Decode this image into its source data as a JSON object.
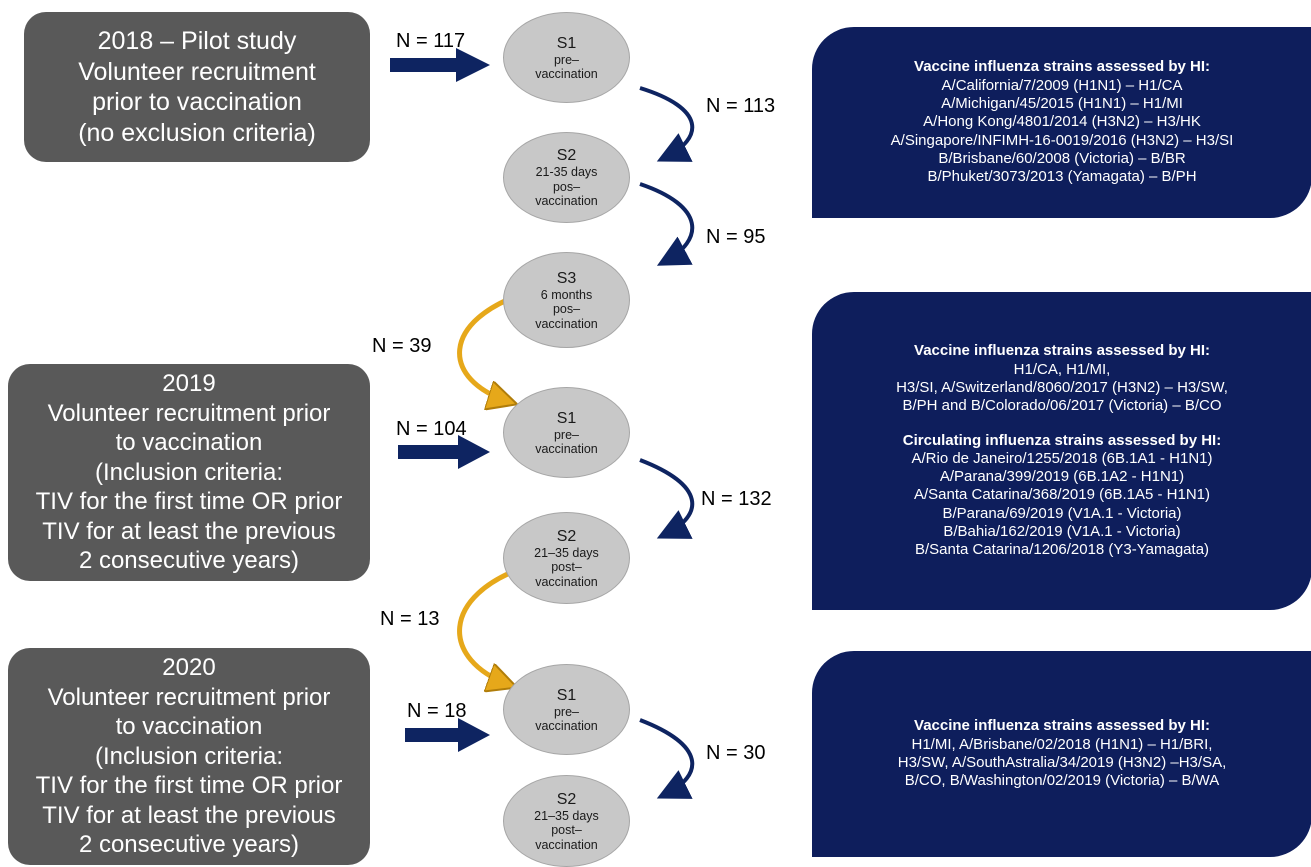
{
  "cohorts": {
    "c2018": {
      "lines": [
        "2018 – Pilot study",
        "Volunteer recruitment",
        "prior to vaccination",
        "(no exclusion criteria)"
      ]
    },
    "c2019": {
      "lines": [
        "2019",
        "Volunteer recruitment  prior",
        "to vaccination",
        "(Inclusion criteria:",
        "TIV for the first time OR prior",
        "TIV for at least the previous",
        "2 consecutive years)"
      ]
    },
    "c2020": {
      "lines": [
        "2020",
        "Volunteer recruitment  prior",
        "to vaccination",
        "(Inclusion criteria:",
        "TIV for the first time OR prior",
        "TIV for at least the previous",
        "2 consecutive years)"
      ]
    }
  },
  "samples": {
    "y2018_s1": {
      "id": "S1",
      "lines": [
        "pre–",
        "vaccination"
      ]
    },
    "y2018_s2": {
      "id": "S2",
      "lines": [
        "21-35 days",
        "pos–",
        "vaccination"
      ]
    },
    "y2018_s3": {
      "id": "S3",
      "lines": [
        "6 months",
        "pos–",
        "vaccination"
      ]
    },
    "y2019_s1": {
      "id": "S1",
      "lines": [
        "pre–",
        "vaccination"
      ]
    },
    "y2019_s2": {
      "id": "S2",
      "lines": [
        "21–35 days",
        "post–",
        "vaccination"
      ]
    },
    "y2020_s1": {
      "id": "S1",
      "lines": [
        "pre–",
        "vaccination"
      ]
    },
    "y2020_s2": {
      "id": "S2",
      "lines": [
        "21–35 days",
        "post–",
        "vaccination"
      ]
    }
  },
  "counts": {
    "recruit_2018": "N = 117",
    "s1_s2_2018": "N = 113",
    "s2_s3_2018": "N = 95",
    "carry_2018_2019": "N = 39",
    "recruit_2019": "N = 104",
    "s1_s2_2019": "N = 132",
    "carry_2019_2020": "N = 13",
    "recruit_2020": "N = 18",
    "s1_s2_2020": "N = 30"
  },
  "panels": {
    "p2018": {
      "heading": "Vaccine influenza strains assessed by HI:",
      "lines": [
        "A/California/7/2009 (H1N1) – H1/CA",
        "A/Michigan/45/2015 (H1N1) – H1/MI",
        "A/Hong Kong/4801/2014 (H3N2) – H3/HK",
        "A/Singapore/INFIMH-16-0019/2016  (H3N2) – H3/SI",
        "B/Brisbane/60/2008 (Victoria) – B/BR",
        "B/Phuket/3073/2013 (Yamagata)  – B/PH"
      ]
    },
    "p2019": {
      "heading": "Vaccine influenza strains assessed by HI:",
      "lines": [
        "H1/CA, H1/MI,",
        "H3/SI, A/Switzerland/8060/2017 (H3N2) – H3/SW,",
        "B/PH and B/Colorado/06/2017 (Victoria) – B/CO"
      ],
      "heading2": "Circulating  influenza strains assessed by HI:",
      "lines2": [
        "A/Rio de Janeiro/1255/2018 (6B.1A1 - H1N1)",
        "A/Parana/399/2019 (6B.1A2 - H1N1)",
        "A/Santa Catarina/368/2019 (6B.1A5 - H1N1)",
        "B/Parana/69/2019 (V1A.1 - Victoria)",
        "B/Bahia/162/2019 (V1A.1 - Victoria)",
        "B/Santa Catarina/1206/2018 (Y3-Yamagata)"
      ]
    },
    "p2020": {
      "heading": "Vaccine influenza strains assessed by HI:",
      "lines": [
        "H1/MI,  A/Brisbane/02/2018 (H1N1) – H1/BRI,",
        "H3/SW, A/SouthAstralia/34/2019 (H3N2) –H3/SA,",
        "B/CO, B/Washington/02/2019 (Victoria) – B/WA"
      ]
    }
  },
  "colors": {
    "cohort_box": "#595959",
    "sample_ellipse": "#c8c8c8",
    "panel": "#0e1e5c",
    "arrow_navy": "#0e2461",
    "arrow_gold": "#e6a81a"
  }
}
